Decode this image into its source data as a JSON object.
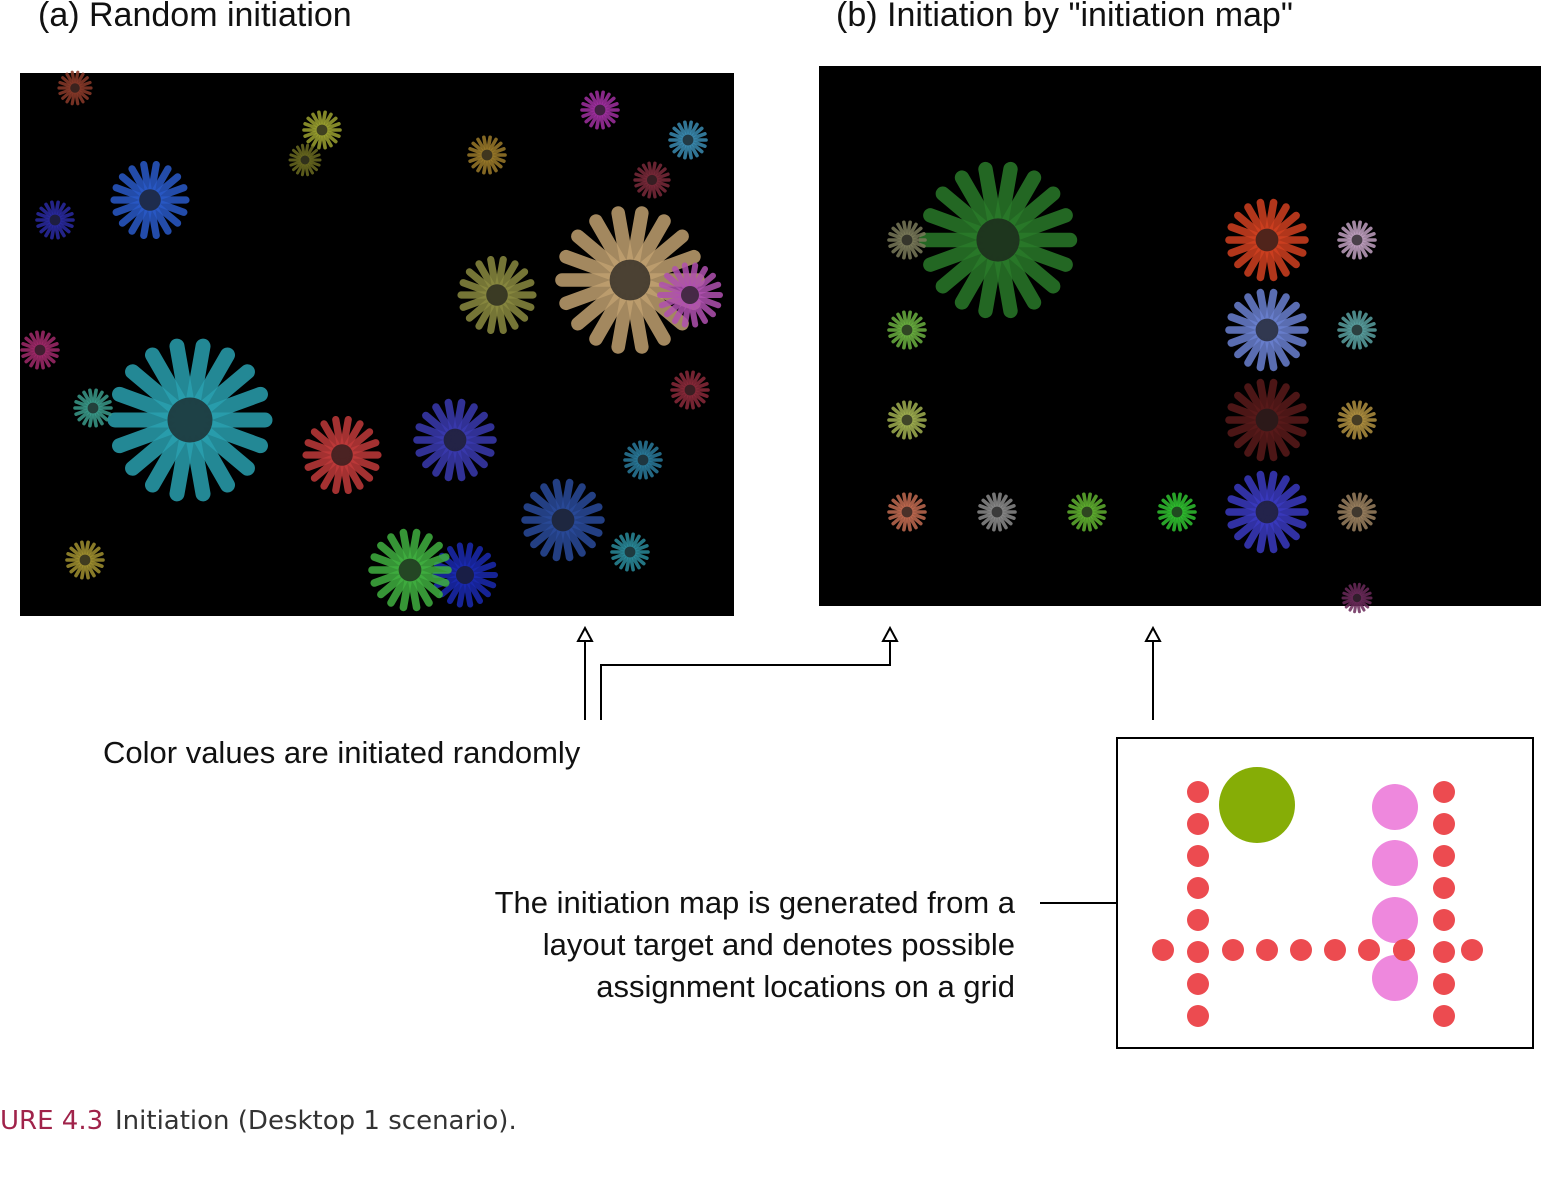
{
  "panels": [
    {
      "title": "(a) Random initiation"
    },
    {
      "title": "(b) Initiation by \"initiation map\""
    }
  ],
  "annotations": [
    {
      "text": "Color values are initiated randomly"
    },
    {
      "lines": [
        "The initiation map is generated from a",
        "layout target and denotes possible",
        "assignment locations on a grid"
      ]
    }
  ],
  "caption": {
    "label": "URE 4.3",
    "text": "Initiation (Desktop 1 scenario)."
  }
}
